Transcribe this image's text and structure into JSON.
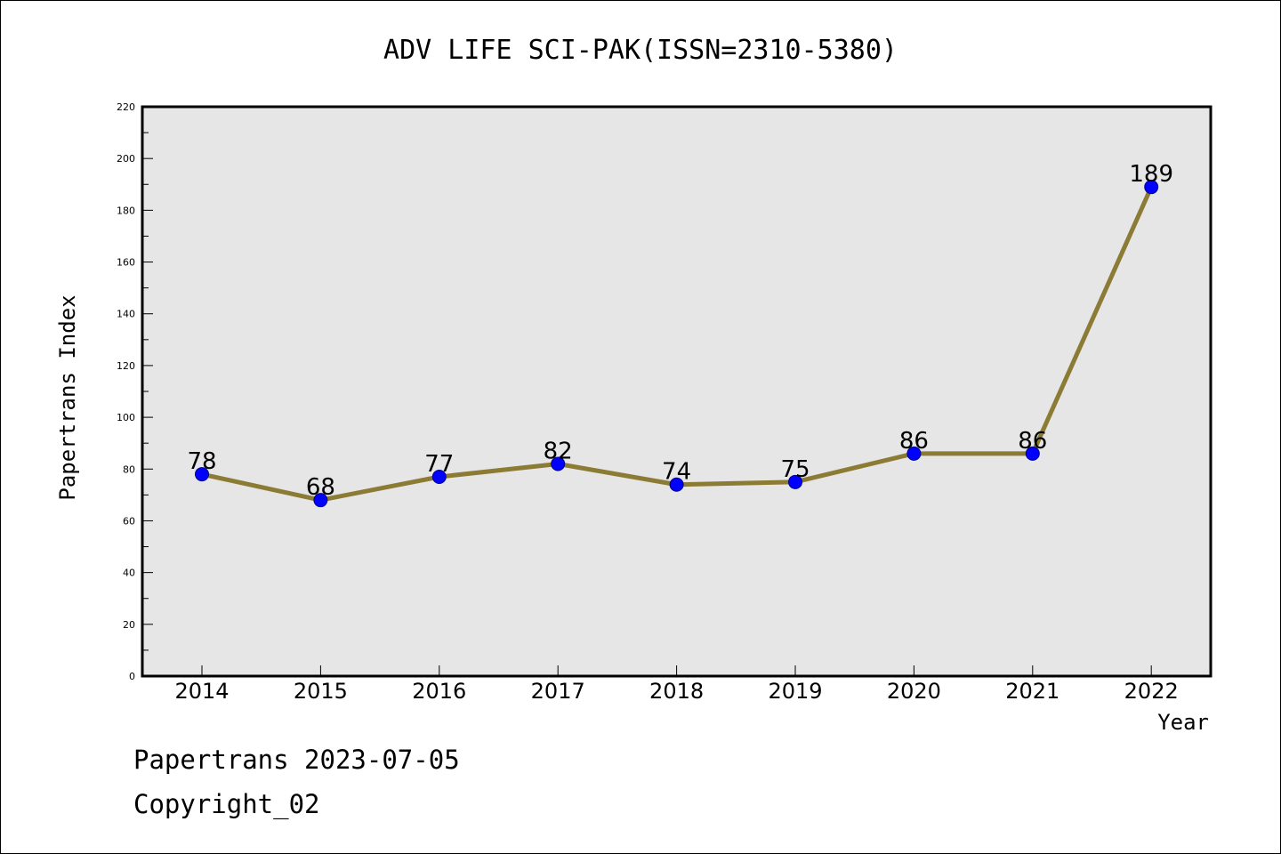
{
  "chart_data": {
    "type": "line",
    "title": "ADV LIFE SCI-PAK(ISSN=2310-5380)",
    "xlabel": "Year",
    "ylabel": "Papertrans Index",
    "categories": [
      "2014",
      "2015",
      "2016",
      "2017",
      "2018",
      "2019",
      "2020",
      "2021",
      "2022"
    ],
    "values": [
      78,
      68,
      77,
      82,
      74,
      75,
      86,
      86,
      189
    ],
    "data_labels": [
      "78",
      "68",
      "77",
      "82",
      "74",
      "75",
      "86",
      "86",
      "189"
    ],
    "ylim": [
      0,
      220
    ],
    "yticks": [
      "0",
      "20",
      "40",
      "60",
      "80",
      "100",
      "120",
      "140",
      "160",
      "180",
      "200",
      "220"
    ],
    "grid": false,
    "line_color": "#8b7b34",
    "marker_color": "#0000ff",
    "plot_background": "#e6e6e6"
  },
  "footer": {
    "line1": "Papertrans 2023-07-05",
    "line2": "Copyright_02"
  }
}
